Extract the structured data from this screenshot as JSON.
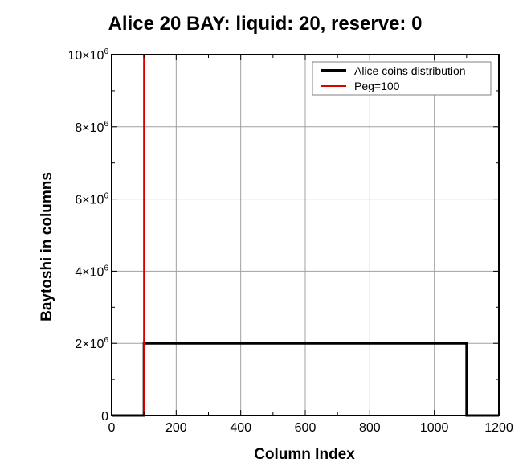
{
  "chart_data": {
    "type": "line",
    "title": "Alice 20 BAY: liquid: 20, reserve: 0",
    "xlabel": "Column Index",
    "ylabel": "Baytoshi in columns",
    "xlim": [
      0,
      1200
    ],
    "ylim": [
      0,
      10000000
    ],
    "xticks": [
      0,
      200,
      400,
      600,
      800,
      1000,
      1200
    ],
    "xtick_labels": [
      "0",
      "200",
      "400",
      "600",
      "800",
      "1000",
      "1200"
    ],
    "yticks": [
      0,
      2000000,
      4000000,
      6000000,
      8000000,
      10000000
    ],
    "ytick_labels": [
      {
        "mantissa": "0",
        "times": "",
        "base": "",
        "exp": ""
      },
      {
        "mantissa": "2",
        "times": "×",
        "base": "10",
        "exp": "6"
      },
      {
        "mantissa": "4",
        "times": "×",
        "base": "10",
        "exp": "6"
      },
      {
        "mantissa": "6",
        "times": "×",
        "base": "10",
        "exp": "6"
      },
      {
        "mantissa": "8",
        "times": "×",
        "base": "10",
        "exp": "6"
      },
      {
        "mantissa": "10",
        "times": "×",
        "base": "10",
        "exp": "6"
      }
    ],
    "grid": true,
    "legend_position": "top-right",
    "series": [
      {
        "name": "Alice coins distribution",
        "color": "#000000",
        "x": [
          0,
          100,
          100,
          1100,
          1100,
          1200
        ],
        "y": [
          0,
          0,
          2000000,
          2000000,
          0,
          0
        ]
      },
      {
        "name": "Peg=100",
        "color": "#dd0000",
        "x": [
          100,
          100
        ],
        "y": [
          0,
          10000000
        ]
      }
    ]
  }
}
